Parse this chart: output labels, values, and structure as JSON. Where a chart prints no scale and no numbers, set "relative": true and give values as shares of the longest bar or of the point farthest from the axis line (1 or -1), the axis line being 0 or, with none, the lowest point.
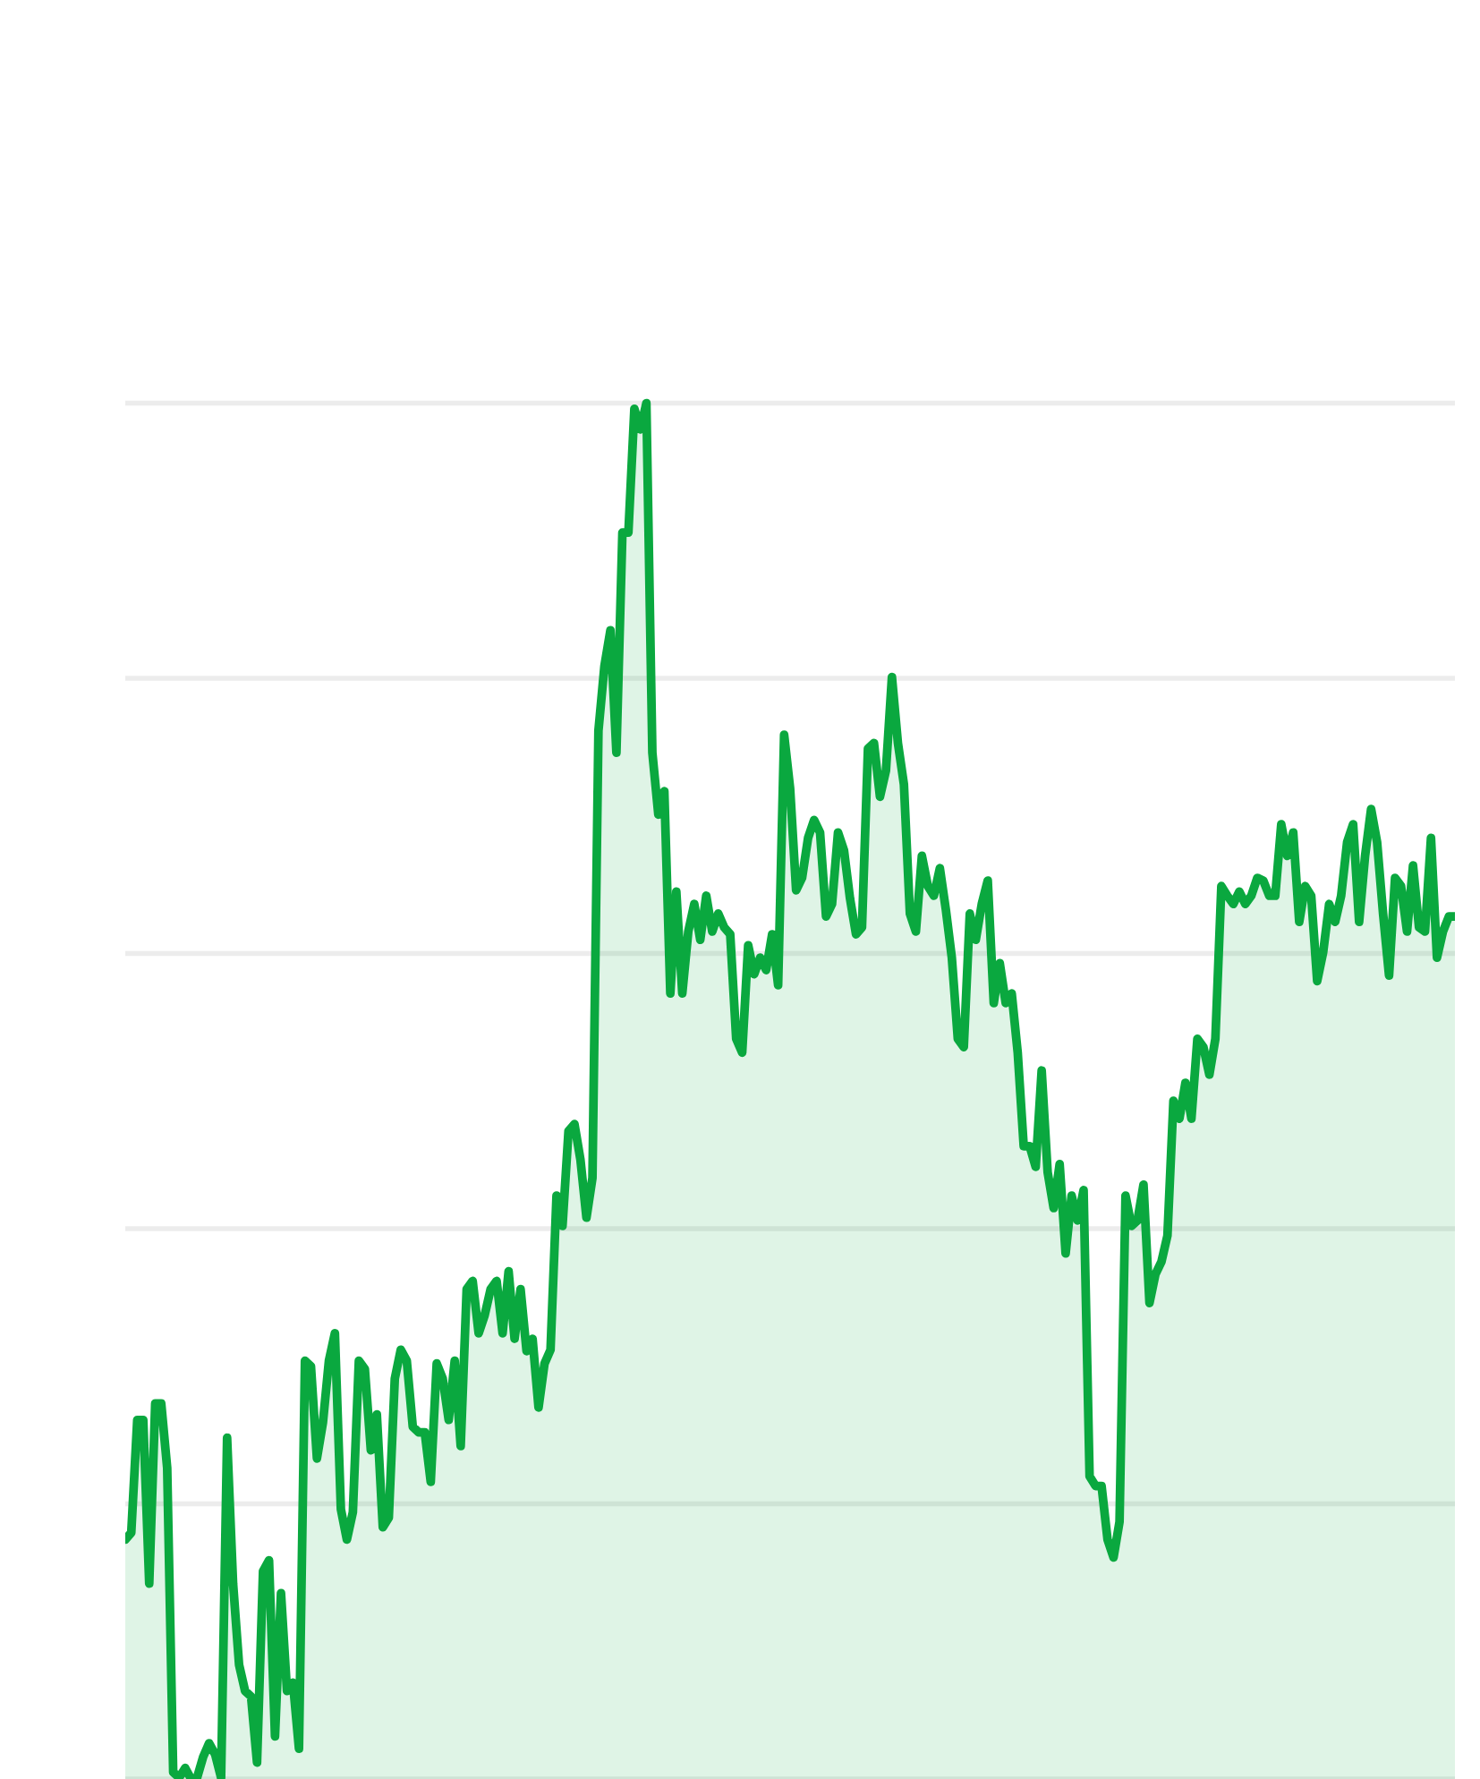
{
  "chart_data": {
    "type": "area",
    "relative": true,
    "grid": "y",
    "marker": "none",
    "line_style": "solid",
    "categories": [
      null,
      null,
      null,
      null,
      null,
      null,
      null,
      null,
      null,
      null,
      null,
      null,
      null,
      null,
      null,
      null,
      null,
      null,
      null,
      null,
      null,
      null,
      null,
      null,
      null,
      null,
      null,
      null,
      null,
      null,
      null,
      null,
      null,
      null,
      null,
      null,
      null,
      null,
      null,
      null,
      null,
      null,
      null,
      null,
      null,
      null,
      null,
      null,
      null,
      null,
      null,
      null,
      null,
      null,
      null,
      null,
      null,
      null,
      null,
      null,
      null,
      null,
      null,
      null,
      null,
      null,
      null,
      null,
      null,
      null,
      null,
      null,
      null,
      null,
      null,
      null,
      null,
      null,
      null,
      null,
      null,
      null,
      null,
      null,
      null,
      null,
      null,
      null,
      null,
      null,
      null,
      null,
      null,
      null,
      null,
      null,
      null,
      null,
      null,
      null,
      null,
      null,
      null,
      null,
      null,
      null,
      null,
      null,
      null,
      null,
      null,
      null,
      null,
      null,
      null,
      null,
      null,
      null,
      null,
      null,
      null,
      null,
      null,
      null,
      null,
      null,
      null,
      null,
      null,
      null,
      null,
      null,
      null,
      null,
      null,
      null,
      null,
      null,
      null,
      null,
      null,
      null,
      null,
      null,
      null,
      null,
      null,
      null,
      null,
      null,
      null,
      null,
      null,
      null,
      null,
      null,
      null,
      null,
      null,
      null,
      null,
      null,
      null,
      null,
      null,
      null,
      null,
      null,
      null,
      null,
      null,
      null,
      null,
      null,
      null,
      null,
      null,
      null,
      null,
      null,
      null,
      null,
      null,
      null,
      null,
      null,
      null,
      null,
      null,
      null,
      null,
      null,
      null,
      null,
      null,
      null,
      null,
      null,
      null,
      null,
      null,
      null,
      null,
      null,
      null,
      null,
      null,
      null,
      null,
      null,
      null,
      null,
      null,
      null,
      null,
      null,
      null,
      null,
      null,
      null,
      null,
      null,
      null
    ],
    "series": [
      {
        "color": "#0aa83f",
        "values": [
          0.174,
          0.179,
          0.261,
          0.261,
          0.142,
          0.273,
          0.273,
          0.226,
          0.005,
          0.001,
          0.008,
          0,
          0.001,
          0.016,
          0.026,
          0.018,
          0.001,
          0.248,
          0.142,
          0.083,
          0.064,
          0.06,
          0.012,
          0.151,
          0.159,
          0.031,
          0.135,
          0.064,
          0.07,
          0.022,
          0.304,
          0.3,
          0.233,
          0.259,
          0.304,
          0.324,
          0.196,
          0.174,
          0.194,
          0.304,
          0.298,
          0.239,
          0.265,
          0.183,
          0.19,
          0.291,
          0.312,
          0.304,
          0.256,
          0.252,
          0.252,
          0.216,
          0.302,
          0.291,
          0.261,
          0.304,
          0.242,
          0.356,
          0.362,
          0.324,
          0.337,
          0.356,
          0.362,
          0.324,
          0.369,
          0.32,
          0.356,
          0.311,
          0.32,
          0.27,
          0.302,
          0.312,
          0.424,
          0.402,
          0.471,
          0.476,
          0.45,
          0.408,
          0.437,
          0.762,
          0.809,
          0.835,
          0.746,
          0.906,
          0.906,
          0.996,
          0.981,
          1,
          0.746,
          0.701,
          0.718,
          0.571,
          0.645,
          0.571,
          0.616,
          0.636,
          0.61,
          0.642,
          0.616,
          0.629,
          0.619,
          0.614,
          0.538,
          0.528,
          0.606,
          0.585,
          0.597,
          0.588,
          0.614,
          0.577,
          0.759,
          0.72,
          0.646,
          0.655,
          0.684,
          0.697,
          0.688,
          0.627,
          0.636,
          0.688,
          0.675,
          0.64,
          0.614,
          0.619,
          0.749,
          0.753,
          0.714,
          0.733,
          0.801,
          0.753,
          0.723,
          0.629,
          0.616,
          0.671,
          0.649,
          0.642,
          0.662,
          0.632,
          0.597,
          0.538,
          0.532,
          0.629,
          0.61,
          0.636,
          0.653,
          0.564,
          0.593,
          0.564,
          0.571,
          0.528,
          0.46,
          0.46,
          0.445,
          0.515,
          0.441,
          0.415,
          0.447,
          0.382,
          0.424,
          0.406,
          0.428,
          0.22,
          0.213,
          0.213,
          0.174,
          0.161,
          0.187,
          0.424,
          0.402,
          0.406,
          0.432,
          0.346,
          0.367,
          0.376,
          0.395,
          0.493,
          0.48,
          0.506,
          0.48,
          0.538,
          0.532,
          0.512,
          0.538,
          0.649,
          0.642,
          0.636,
          0.645,
          0.636,
          0.642,
          0.655,
          0.653,
          0.642,
          0.642,
          0.694,
          0.671,
          0.688,
          0.623,
          0.649,
          0.642,
          0.58,
          0.601,
          0.636,
          0.623,
          0.642,
          0.681,
          0.694,
          0.623,
          0.671,
          0.705,
          0.681,
          0.629,
          0.584,
          0.655,
          0.649,
          0.616,
          0.664,
          0.619,
          0.616,
          0.684,
          0.597,
          0.616,
          0.627,
          0.627
        ]
      }
    ]
  }
}
